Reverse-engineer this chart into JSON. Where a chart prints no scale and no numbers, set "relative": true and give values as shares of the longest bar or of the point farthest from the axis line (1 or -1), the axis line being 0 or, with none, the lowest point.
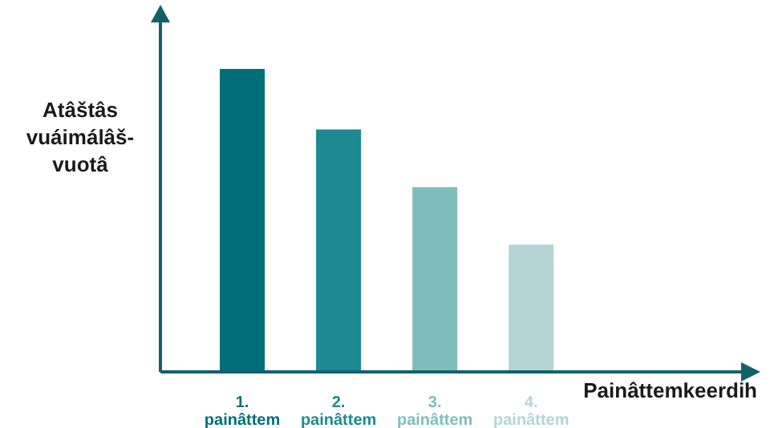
{
  "chart_data": {
    "type": "bar",
    "relative": true,
    "xlabel": "Painâttemkeerdih",
    "ylabel": "Atâštâs vuáimálâš-vuotâ",
    "categories": [
      "1. painâttem",
      "2. painâttem",
      "3. painâttem",
      "4. painâttem"
    ],
    "values": [
      1,
      0.8,
      0.61,
      0.42
    ],
    "colors": [
      "#006e78",
      "#1c8a90",
      "#7fbdbd",
      "#b3d5d5"
    ],
    "grid": false,
    "legend": false
  }
}
